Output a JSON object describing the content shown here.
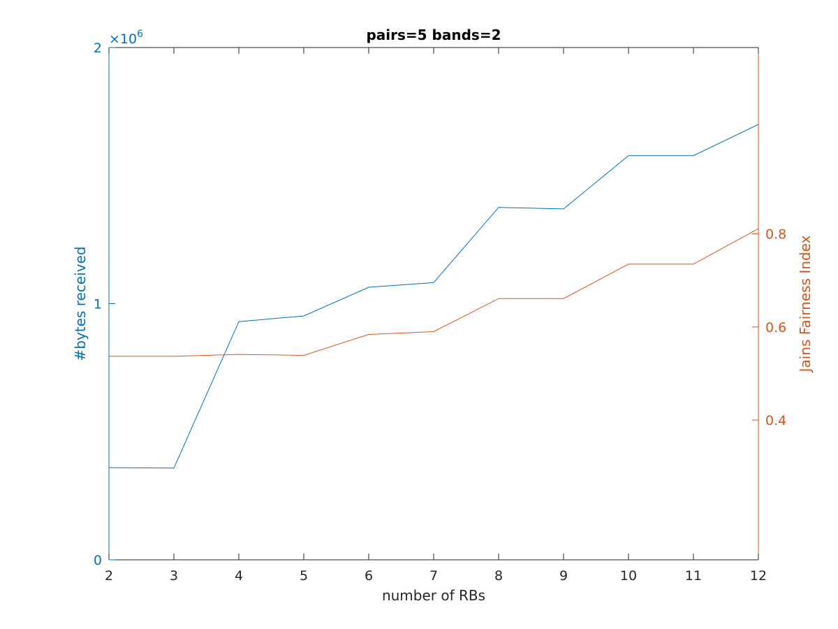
{
  "chart_data": {
    "type": "line",
    "title": "pairs=5 bands=2",
    "xlabel": "number of RBs",
    "x": [
      2,
      3,
      4,
      5,
      6,
      7,
      8,
      9,
      10,
      11,
      12
    ],
    "xlim": [
      2,
      12
    ],
    "xticks": [
      "2",
      "3",
      "4",
      "5",
      "6",
      "7",
      "8",
      "9",
      "10",
      "11",
      "12"
    ],
    "left_axis": {
      "label": "#bytes received",
      "exponent_label": "×10",
      "exponent_power": "6",
      "ylim": [
        0,
        2000000
      ],
      "ticks": [
        "0",
        "1",
        "2"
      ],
      "tick_values": [
        0,
        1000000,
        2000000
      ],
      "color": "#0072BD"
    },
    "right_axis": {
      "label": "Jains Fairness Index",
      "ylim": [
        0.1,
        1.2
      ],
      "ticks": [
        "0.4",
        "0.6",
        "0.8"
      ],
      "tick_values": [
        0.4,
        0.6,
        0.8
      ],
      "color": "#D95319"
    },
    "series": [
      {
        "axis": "left",
        "color": "#0072BD",
        "values": [
          360000,
          358000,
          930000,
          952000,
          1064000,
          1082000,
          1376000,
          1370000,
          1578000,
          1578000,
          1700000
        ]
      },
      {
        "axis": "right",
        "color": "#D95319",
        "values": [
          0.537,
          0.537,
          0.541,
          0.539,
          0.584,
          0.59,
          0.661,
          0.661,
          0.735,
          0.735,
          0.811
        ]
      }
    ],
    "grid": false,
    "legend": "none"
  }
}
